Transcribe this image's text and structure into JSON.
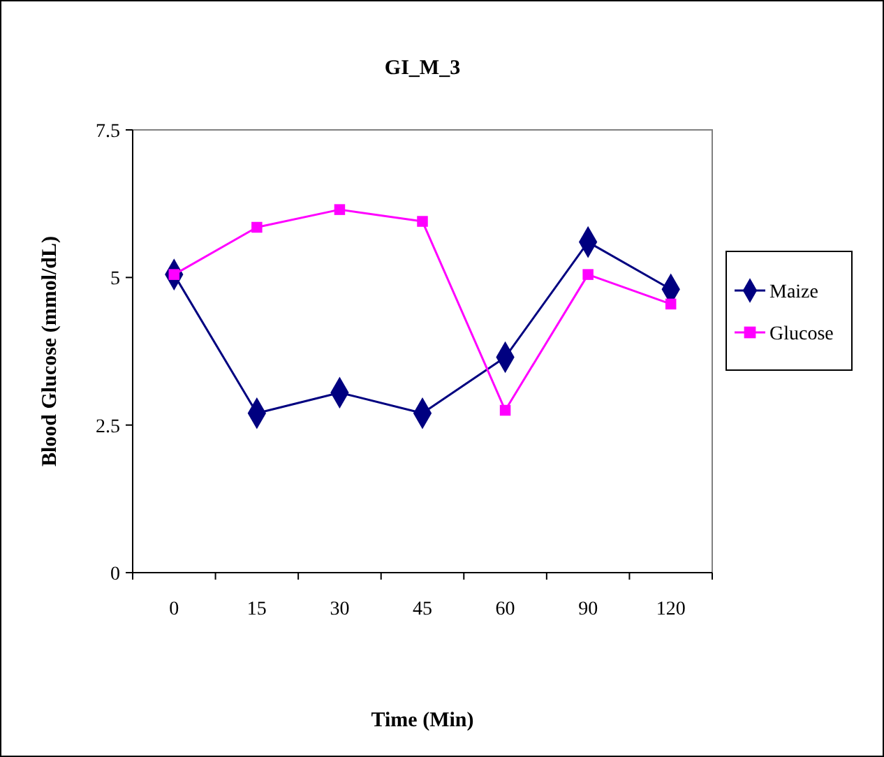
{
  "chart_data": {
    "type": "line",
    "title": "GI_M_3",
    "xlabel": "Time (Min)",
    "ylabel": "Blood Glucose (mmol/dL)",
    "categories": [
      "0",
      "15",
      "30",
      "45",
      "60",
      "90",
      "120"
    ],
    "series": [
      {
        "name": "Maize",
        "color": "#000080",
        "marker": "diamond",
        "values": [
          5.05,
          2.7,
          3.05,
          2.7,
          3.65,
          5.6,
          4.8
        ]
      },
      {
        "name": "Glucose",
        "color": "#ff00ff",
        "marker": "square",
        "values": [
          5.05,
          5.85,
          6.15,
          5.95,
          2.75,
          5.05,
          4.55
        ]
      }
    ],
    "ylim": [
      0,
      7.5
    ],
    "yticks": [
      0,
      2.5,
      5,
      7.5
    ],
    "grid": false,
    "legend": "right",
    "line_style": "solid"
  }
}
